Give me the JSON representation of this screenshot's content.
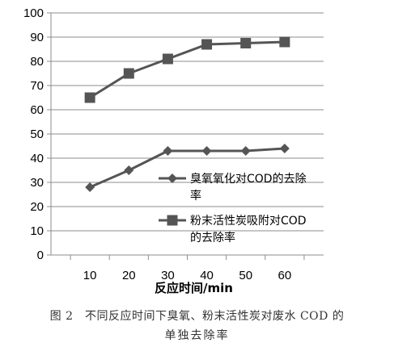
{
  "chart_data": {
    "type": "line",
    "x": [
      10,
      20,
      30,
      40,
      50,
      60
    ],
    "series": [
      {
        "name": "臭氧氧化对COD的去除率",
        "marker": "diamond",
        "values": [
          28,
          35,
          43,
          43,
          43,
          44
        ]
      },
      {
        "name": "粉末活性炭吸附对COD的去除率",
        "marker": "square",
        "values": [
          65,
          75,
          81,
          87,
          87.5,
          88
        ]
      }
    ],
    "xlabel": "反应时间/min",
    "ylabel": "",
    "ylim": [
      0,
      100
    ],
    "yticks": [
      0,
      10,
      20,
      30,
      40,
      50,
      60,
      70,
      80,
      90,
      100
    ],
    "xticks": [
      10,
      20,
      30,
      40,
      50,
      60
    ],
    "grid": "horizontal",
    "legend": "inside-bottom-right",
    "line_color": "#555555"
  },
  "legend": {
    "s1": [
      "臭氧氧化对COD的去除",
      "率"
    ],
    "s2": [
      "粉末活性炭吸附对COD",
      "的去除率"
    ]
  },
  "caption": {
    "line1": "图 2　不同反应时间下臭氧、粉末活性炭对废水 COD 的",
    "line2": "单独去除率"
  }
}
